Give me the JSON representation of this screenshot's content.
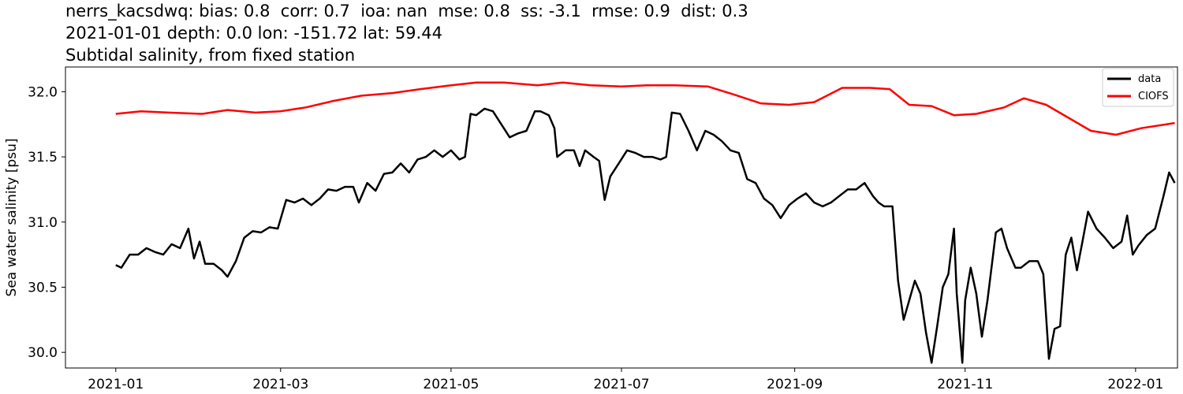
{
  "chart_data": {
    "type": "line",
    "title_lines": [
      "nerrs_kacsdwq: bias: 0.8  corr: 0.7  ioa: nan  mse: 0.8  ss: -3.1  rmse: 0.9  dist: 0.3",
      "2021-01-01 depth: 0.0 lon: -151.72 lat: 59.44",
      "Subtidal salinity, from fixed station"
    ],
    "ylabel": "Sea water salinity [psu]",
    "xlabel": "",
    "x_ticks": [
      "2021-01",
      "2021-03",
      "2021-05",
      "2021-07",
      "2021-09",
      "2021-11",
      "2022-01"
    ],
    "y_ticks": [
      "30.0",
      "30.5",
      "31.0",
      "31.5",
      "32.0"
    ],
    "xlim": [
      "2020-12-14",
      "2022-01-16"
    ],
    "ylim": [
      29.88,
      32.19
    ],
    "grid": false,
    "legend_position": "top-right",
    "series": [
      {
        "name": "data",
        "color": "#000000",
        "points": [
          [
            "2021-01-01",
            30.67
          ],
          [
            "2021-01-03",
            30.65
          ],
          [
            "2021-01-06",
            30.75
          ],
          [
            "2021-01-09",
            30.75
          ],
          [
            "2021-01-12",
            30.8
          ],
          [
            "2021-01-15",
            30.77
          ],
          [
            "2021-01-18",
            30.75
          ],
          [
            "2021-01-21",
            30.83
          ],
          [
            "2021-01-24",
            30.8
          ],
          [
            "2021-01-27",
            30.95
          ],
          [
            "2021-01-29",
            30.72
          ],
          [
            "2021-01-31",
            30.85
          ],
          [
            "2021-02-02",
            30.68
          ],
          [
            "2021-02-05",
            30.68
          ],
          [
            "2021-02-08",
            30.63
          ],
          [
            "2021-02-10",
            30.58
          ],
          [
            "2021-02-13",
            30.7
          ],
          [
            "2021-02-16",
            30.88
          ],
          [
            "2021-02-19",
            30.93
          ],
          [
            "2021-02-22",
            30.92
          ],
          [
            "2021-02-25",
            30.96
          ],
          [
            "2021-02-28",
            30.95
          ],
          [
            "2021-03-03",
            31.17
          ],
          [
            "2021-03-06",
            31.15
          ],
          [
            "2021-03-09",
            31.18
          ],
          [
            "2021-03-12",
            31.13
          ],
          [
            "2021-03-15",
            31.18
          ],
          [
            "2021-03-18",
            31.25
          ],
          [
            "2021-03-21",
            31.24
          ],
          [
            "2021-03-24",
            31.27
          ],
          [
            "2021-03-27",
            31.27
          ],
          [
            "2021-03-29",
            31.15
          ],
          [
            "2021-04-01",
            31.3
          ],
          [
            "2021-04-04",
            31.24
          ],
          [
            "2021-04-07",
            31.37
          ],
          [
            "2021-04-10",
            31.38
          ],
          [
            "2021-04-13",
            31.45
          ],
          [
            "2021-04-16",
            31.38
          ],
          [
            "2021-04-19",
            31.48
          ],
          [
            "2021-04-22",
            31.5
          ],
          [
            "2021-04-25",
            31.55
          ],
          [
            "2021-04-28",
            31.5
          ],
          [
            "2021-05-01",
            31.55
          ],
          [
            "2021-05-04",
            31.48
          ],
          [
            "2021-05-06",
            31.5
          ],
          [
            "2021-05-08",
            31.83
          ],
          [
            "2021-05-10",
            31.82
          ],
          [
            "2021-05-13",
            31.87
          ],
          [
            "2021-05-16",
            31.85
          ],
          [
            "2021-05-19",
            31.75
          ],
          [
            "2021-05-22",
            31.65
          ],
          [
            "2021-05-25",
            31.68
          ],
          [
            "2021-05-28",
            31.7
          ],
          [
            "2021-05-31",
            31.85
          ],
          [
            "2021-06-02",
            31.85
          ],
          [
            "2021-06-05",
            31.82
          ],
          [
            "2021-06-07",
            31.72
          ],
          [
            "2021-06-08",
            31.5
          ],
          [
            "2021-06-11",
            31.55
          ],
          [
            "2021-06-14",
            31.55
          ],
          [
            "2021-06-16",
            31.43
          ],
          [
            "2021-06-18",
            31.55
          ],
          [
            "2021-06-21",
            31.5
          ],
          [
            "2021-06-23",
            31.47
          ],
          [
            "2021-06-25",
            31.17
          ],
          [
            "2021-06-27",
            31.35
          ],
          [
            "2021-06-30",
            31.45
          ],
          [
            "2021-07-03",
            31.55
          ],
          [
            "2021-07-06",
            31.53
          ],
          [
            "2021-07-09",
            31.5
          ],
          [
            "2021-07-12",
            31.5
          ],
          [
            "2021-07-15",
            31.48
          ],
          [
            "2021-07-17",
            31.5
          ],
          [
            "2021-07-19",
            31.84
          ],
          [
            "2021-07-22",
            31.83
          ],
          [
            "2021-07-25",
            31.7
          ],
          [
            "2021-07-28",
            31.55
          ],
          [
            "2021-07-31",
            31.7
          ],
          [
            "2021-08-03",
            31.67
          ],
          [
            "2021-08-06",
            31.62
          ],
          [
            "2021-08-09",
            31.55
          ],
          [
            "2021-08-12",
            31.53
          ],
          [
            "2021-08-15",
            31.33
          ],
          [
            "2021-08-18",
            31.3
          ],
          [
            "2021-08-21",
            31.18
          ],
          [
            "2021-08-24",
            31.13
          ],
          [
            "2021-08-27",
            31.03
          ],
          [
            "2021-08-30",
            31.13
          ],
          [
            "2021-09-02",
            31.18
          ],
          [
            "2021-09-05",
            31.22
          ],
          [
            "2021-09-08",
            31.15
          ],
          [
            "2021-09-11",
            31.12
          ],
          [
            "2021-09-14",
            31.15
          ],
          [
            "2021-09-17",
            31.2
          ],
          [
            "2021-09-20",
            31.25
          ],
          [
            "2021-09-23",
            31.25
          ],
          [
            "2021-09-26",
            31.3
          ],
          [
            "2021-09-29",
            31.2
          ],
          [
            "2021-10-01",
            31.15
          ],
          [
            "2021-10-03",
            31.12
          ],
          [
            "2021-10-06",
            31.12
          ],
          [
            "2021-10-08",
            30.55
          ],
          [
            "2021-10-10",
            30.25
          ],
          [
            "2021-10-12",
            30.4
          ],
          [
            "2021-10-14",
            30.55
          ],
          [
            "2021-10-16",
            30.45
          ],
          [
            "2021-10-18",
            30.15
          ],
          [
            "2021-10-20",
            29.92
          ],
          [
            "2021-10-22",
            30.2
          ],
          [
            "2021-10-24",
            30.5
          ],
          [
            "2021-10-26",
            30.6
          ],
          [
            "2021-10-28",
            30.95
          ],
          [
            "2021-10-29",
            30.45
          ],
          [
            "2021-10-31",
            29.92
          ],
          [
            "2021-11-01",
            30.4
          ],
          [
            "2021-11-03",
            30.65
          ],
          [
            "2021-11-05",
            30.45
          ],
          [
            "2021-11-07",
            30.12
          ],
          [
            "2021-11-09",
            30.4
          ],
          [
            "2021-11-12",
            30.92
          ],
          [
            "2021-11-14",
            30.95
          ],
          [
            "2021-11-16",
            30.8
          ],
          [
            "2021-11-19",
            30.65
          ],
          [
            "2021-11-21",
            30.65
          ],
          [
            "2021-11-24",
            30.7
          ],
          [
            "2021-11-27",
            30.7
          ],
          [
            "2021-11-29",
            30.6
          ],
          [
            "2021-12-01",
            29.95
          ],
          [
            "2021-12-03",
            30.18
          ],
          [
            "2021-12-05",
            30.2
          ],
          [
            "2021-12-07",
            30.75
          ],
          [
            "2021-12-09",
            30.88
          ],
          [
            "2021-12-11",
            30.63
          ],
          [
            "2021-12-13",
            30.85
          ],
          [
            "2021-12-15",
            31.08
          ],
          [
            "2021-12-18",
            30.95
          ],
          [
            "2021-12-21",
            30.88
          ],
          [
            "2021-12-24",
            30.8
          ],
          [
            "2021-12-27",
            30.85
          ],
          [
            "2021-12-29",
            31.05
          ],
          [
            "2021-12-31",
            30.75
          ],
          [
            "2022-01-02",
            30.82
          ],
          [
            "2022-01-05",
            30.9
          ],
          [
            "2022-01-08",
            30.95
          ],
          [
            "2022-01-11",
            31.2
          ],
          [
            "2022-01-13",
            31.38
          ],
          [
            "2022-01-15",
            31.3
          ]
        ]
      },
      {
        "name": "CIOFS",
        "color": "#ff0000",
        "points": [
          [
            "2021-01-01",
            31.83
          ],
          [
            "2021-01-10",
            31.85
          ],
          [
            "2021-01-20",
            31.84
          ],
          [
            "2021-02-01",
            31.83
          ],
          [
            "2021-02-10",
            31.86
          ],
          [
            "2021-02-20",
            31.84
          ],
          [
            "2021-03-01",
            31.85
          ],
          [
            "2021-03-10",
            31.88
          ],
          [
            "2021-03-20",
            31.93
          ],
          [
            "2021-03-30",
            31.97
          ],
          [
            "2021-04-10",
            31.99
          ],
          [
            "2021-04-20",
            32.02
          ],
          [
            "2021-05-01",
            32.05
          ],
          [
            "2021-05-10",
            32.07
          ],
          [
            "2021-05-20",
            32.07
          ],
          [
            "2021-06-01",
            32.05
          ],
          [
            "2021-06-10",
            32.07
          ],
          [
            "2021-06-20",
            32.05
          ],
          [
            "2021-07-01",
            32.04
          ],
          [
            "2021-07-10",
            32.05
          ],
          [
            "2021-07-20",
            32.05
          ],
          [
            "2021-08-01",
            32.04
          ],
          [
            "2021-08-10",
            31.98
          ],
          [
            "2021-08-20",
            31.91
          ],
          [
            "2021-08-30",
            31.9
          ],
          [
            "2021-09-08",
            31.92
          ],
          [
            "2021-09-18",
            32.03
          ],
          [
            "2021-09-28",
            32.03
          ],
          [
            "2021-10-05",
            32.02
          ],
          [
            "2021-10-12",
            31.9
          ],
          [
            "2021-10-20",
            31.89
          ],
          [
            "2021-10-28",
            31.82
          ],
          [
            "2021-11-05",
            31.83
          ],
          [
            "2021-11-15",
            31.88
          ],
          [
            "2021-11-22",
            31.95
          ],
          [
            "2021-11-30",
            31.9
          ],
          [
            "2021-12-08",
            31.8
          ],
          [
            "2021-12-16",
            31.7
          ],
          [
            "2021-12-25",
            31.67
          ],
          [
            "2022-01-03",
            31.72
          ],
          [
            "2022-01-15",
            31.76
          ]
        ]
      }
    ]
  }
}
